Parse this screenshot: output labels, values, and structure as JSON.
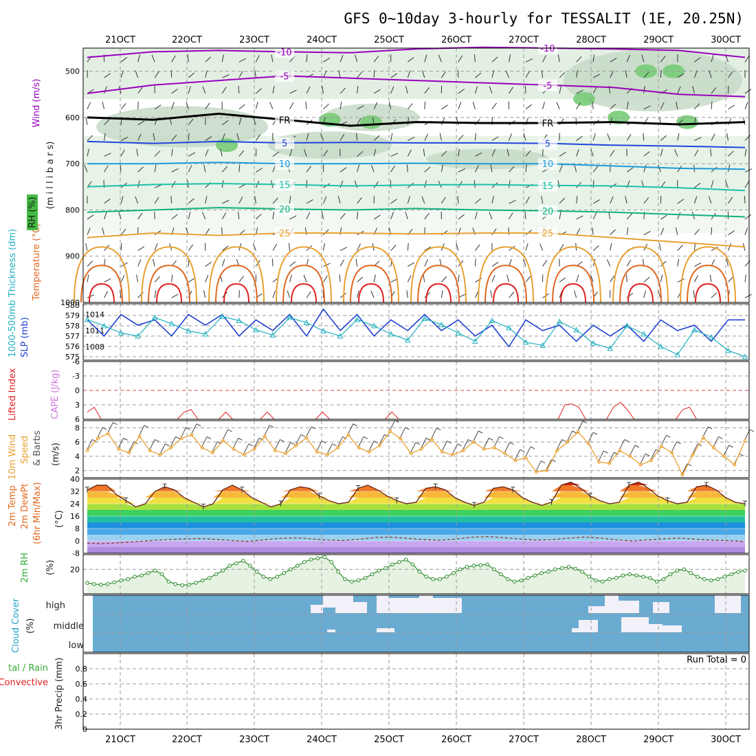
{
  "title": "GFS 0~10day 3-hourly for TESSALIT (1E, 20.25N)",
  "dates": [
    "21OCT",
    "22OCT",
    "23OCT",
    "24OCT",
    "25OCT",
    "26OCT",
    "27OCT",
    "28OCT",
    "29OCT",
    "30OCT"
  ],
  "colors": {
    "purple": "#9900bb",
    "blue": "#1e46dc",
    "cyan": "#1c9ad8",
    "teal": "#1cc0a8",
    "green2": "#10b080",
    "orange": "#e8a030",
    "dorange": "#e06820",
    "red": "#e02020",
    "rh": "#44bb44",
    "cape": "#cc77dd",
    "slp": "#2040d0",
    "thick": "#20b0c0",
    "cloud": "#6aabd2"
  },
  "chart_data": [
    {
      "type": "contour",
      "name": "upper-air cross-section",
      "labels": [
        "Wind (m/s)",
        "Temperature (°C)",
        "RH (%)",
        "(m i l l i b a r s)"
      ],
      "ylim": [
        1000,
        450
      ],
      "y_ticks": [
        "500",
        "600",
        "700",
        "800",
        "900",
        "1000"
      ],
      "series": [
        {
          "name": "-10",
          "color": "purple",
          "pressure": [
            470,
            458,
            455,
            458,
            460,
            452,
            448,
            450,
            452,
            455,
            470
          ],
          "label_text": "-10"
        },
        {
          "name": "-5",
          "color": "purple",
          "pressure": [
            548,
            530,
            520,
            510,
            515,
            520,
            525,
            530,
            535,
            550,
            555
          ],
          "label_text": "-5"
        },
        {
          "name": "FR",
          "color": "black",
          "pressure": [
            600,
            605,
            592,
            605,
            618,
            610,
            612,
            612,
            610,
            615,
            610
          ],
          "label_text": "FR"
        },
        {
          "name": "5",
          "color": "blue",
          "pressure": [
            652,
            656,
            652,
            655,
            654,
            655,
            655,
            656,
            660,
            662,
            665
          ],
          "label_text": "5"
        },
        {
          "name": "10",
          "color": "cyan",
          "pressure": [
            700,
            700,
            697,
            700,
            700,
            699,
            700,
            700,
            705,
            710,
            712
          ],
          "label_text": "10"
        },
        {
          "name": "15",
          "color": "teal",
          "pressure": [
            750,
            745,
            743,
            745,
            748,
            746,
            745,
            747,
            748,
            752,
            758
          ],
          "label_text": "15"
        },
        {
          "name": "20",
          "color": "green2",
          "pressure": [
            805,
            800,
            795,
            798,
            800,
            797,
            800,
            802,
            805,
            810,
            815
          ],
          "label_text": "20"
        },
        {
          "name": "25",
          "color": "orange",
          "pressure": [
            860,
            850,
            855,
            850,
            850,
            852,
            850,
            850,
            860,
            870,
            880
          ],
          "label_text": "25"
        }
      ]
    },
    {
      "type": "line",
      "name": "SLP and thickness",
      "labels": [
        "SLP (mb)",
        "1000-500mb Thickness (dm)"
      ],
      "left_ticks": [
        "580",
        "579",
        "578",
        "577",
        "576",
        "575"
      ],
      "right_ticks": [
        "1014",
        "1011",
        "1008"
      ],
      "slp": [
        1013,
        1010,
        1014,
        1012,
        1013,
        1010,
        1014,
        1012,
        1014,
        1010,
        1013,
        1011,
        1014,
        1010,
        1015,
        1011,
        1014,
        1010,
        1013,
        1011,
        1014,
        1011,
        1013,
        1010,
        1012,
        1008,
        1013,
        1011,
        1012,
        1009,
        1012,
        1010,
        1012,
        1009,
        1013,
        1011,
        1012,
        1009,
        1013,
        1013
      ],
      "thickness": [
        578.6,
        578.0,
        577.3,
        577.0,
        578.8,
        578.2,
        577.5,
        577.2,
        578.9,
        578.5,
        577.6,
        577.1,
        578.8,
        578.3,
        577.5,
        577.0,
        578.6,
        578.0,
        577.2,
        576.6,
        578.7,
        578.1,
        577.3,
        576.5,
        578.5,
        577.8,
        576.4,
        576.1,
        578.4,
        577.6,
        576.3,
        575.8,
        578.0,
        577.2,
        576.0,
        575.2,
        577.6,
        576.9,
        575.6,
        575.0
      ]
    },
    {
      "type": "line",
      "name": "CAPE and Lifted Index",
      "labels": [
        "Lifted Index",
        "CAPE (J/kg)"
      ],
      "y_ticks": [
        "-6",
        "-3",
        "0",
        "3",
        "6"
      ],
      "ylim": [
        6,
        -6
      ],
      "lifted_index": [
        4.5,
        3.5,
        6,
        6,
        6,
        6,
        6,
        6,
        6,
        6,
        6,
        6,
        6,
        6,
        4.5,
        4,
        6,
        6,
        6,
        6,
        4.5,
        6,
        6,
        6,
        6,
        6,
        4.5,
        6,
        6,
        6,
        6,
        6,
        6,
        6,
        4.5,
        6,
        6,
        6,
        6,
        6,
        6,
        6,
        6,
        6,
        4.5,
        6,
        6,
        6,
        6,
        6,
        6,
        6,
        6,
        6,
        6,
        6,
        6,
        6,
        6,
        6,
        6,
        6,
        6,
        6,
        6,
        6,
        6,
        6,
        6,
        3,
        2.8,
        3.5,
        6,
        6,
        6,
        6,
        3.5,
        2.5,
        4,
        6,
        6,
        6,
        6,
        6,
        6,
        6,
        4,
        3.5,
        6,
        6,
        6,
        6,
        6,
        6,
        6,
        6
      ]
    },
    {
      "type": "line",
      "name": "10m wind speed",
      "labels": [
        "10m Wind",
        "Speed",
        "& Barbs",
        "(m/s)"
      ],
      "y_ticks": [
        "2",
        "4",
        "6",
        "8"
      ],
      "ylim": [
        1,
        9
      ],
      "speed": [
        4.8,
        6.5,
        7.2,
        5.0,
        4.5,
        6.8,
        4.8,
        4.2,
        5.2,
        6.5,
        7.0,
        5.2,
        4.5,
        6.2,
        5.0,
        4.2,
        5.0,
        6.8,
        4.8,
        4.4,
        5.5,
        6.6,
        4.6,
        4.2,
        5.2,
        7.0,
        5.2,
        4.6,
        5.5,
        7.5,
        6.5,
        4.4,
        5.0,
        6.4,
        4.6,
        4.2,
        4.8,
        6.0,
        5.0,
        5.2,
        4.4,
        3.4,
        3.8,
        1.8,
        2.0,
        4.8,
        6.0,
        7.4,
        5.8,
        3.2,
        3.0,
        4.8,
        4.0,
        2.8,
        3.4,
        5.4,
        4.5,
        1.4,
        4.2,
        6.6,
        5.2,
        4.0,
        2.8,
        6.2
      ]
    },
    {
      "type": "area",
      "name": "2m temperature",
      "labels": [
        "2m Temp",
        "2m DewPt",
        "(6hr Min/Max)",
        "(°C)"
      ],
      "y_ticks": [
        "40",
        "32",
        "24",
        "16",
        "8",
        "0",
        "-8"
      ],
      "ylim": [
        -8,
        40
      ],
      "temp": [
        33,
        36,
        36,
        30,
        26,
        22,
        24,
        32,
        35,
        33,
        28,
        25,
        22,
        24,
        33,
        36,
        33,
        28,
        25,
        22,
        24,
        33,
        35,
        34,
        29,
        26,
        24,
        25,
        34,
        36,
        33,
        29,
        26,
        24,
        25,
        34,
        35,
        33,
        28,
        25,
        23,
        25,
        34,
        35,
        33,
        28,
        25,
        23,
        25,
        36,
        38,
        34,
        29,
        26,
        24,
        25,
        36,
        38,
        34,
        29,
        26,
        24,
        25,
        35,
        36,
        33,
        28,
        25,
        24
      ],
      "dewpoint": [
        -1.5,
        -1.8,
        -1.2,
        -0.5,
        0.2,
        0.8,
        1.2,
        1.5,
        1.0,
        0.2,
        -0.3,
        0.6,
        1.6,
        2.0,
        1.3,
        0.5,
        0.2,
        1.1,
        2.2,
        2.4,
        1.6,
        0.8,
        0.4,
        1.2,
        2.4,
        2.8,
        2.0,
        1.2,
        0.5,
        0.8,
        1.8,
        2.5,
        1.8,
        0.6,
        0.0,
        0.6,
        1.4,
        1.8,
        1.0,
        0.4,
        0.2,
        -0.4
      ]
    },
    {
      "type": "area",
      "name": "2m RH",
      "labels": [
        "2m RH",
        "(%)"
      ],
      "y_ticks": [
        "20"
      ],
      "ylim": [
        0,
        32
      ],
      "rh": [
        9,
        8,
        7.5,
        8,
        9.5,
        11,
        12,
        14,
        15,
        17,
        19,
        16,
        10,
        8,
        7,
        7.5,
        9,
        11,
        13,
        16,
        19,
        23,
        25,
        27,
        23,
        18,
        14,
        12,
        14,
        17,
        20,
        23,
        26,
        28,
        29,
        30,
        26,
        18,
        12,
        10,
        11,
        13,
        16,
        19,
        21,
        24,
        26,
        28,
        24,
        18,
        14,
        12,
        12,
        14,
        17,
        20,
        22,
        23,
        23.5,
        24,
        20,
        16,
        12,
        10,
        11,
        13,
        15,
        17,
        18,
        20,
        21,
        22,
        20.5,
        18,
        14,
        11,
        10,
        12,
        13,
        15,
        16,
        15,
        14,
        13,
        10,
        12,
        16,
        19,
        20,
        17,
        14,
        12,
        11,
        12,
        14,
        16,
        18,
        19
      ]
    },
    {
      "type": "heatmap",
      "name": "cloud cover",
      "labels": [
        "Cloud Cover",
        "(%)"
      ],
      "row_labels": [
        "high",
        "middle",
        "low"
      ]
    },
    {
      "type": "bar",
      "name": "3hr precipitation",
      "labels": [
        "tal / Rain",
        "Convective",
        "3hr Precip (mm)"
      ],
      "y_ticks": [
        "0",
        "0.2",
        "0.4",
        "0.6",
        "0.8"
      ],
      "ylim": [
        0,
        1
      ],
      "run_total": "Run Total = 0"
    }
  ]
}
